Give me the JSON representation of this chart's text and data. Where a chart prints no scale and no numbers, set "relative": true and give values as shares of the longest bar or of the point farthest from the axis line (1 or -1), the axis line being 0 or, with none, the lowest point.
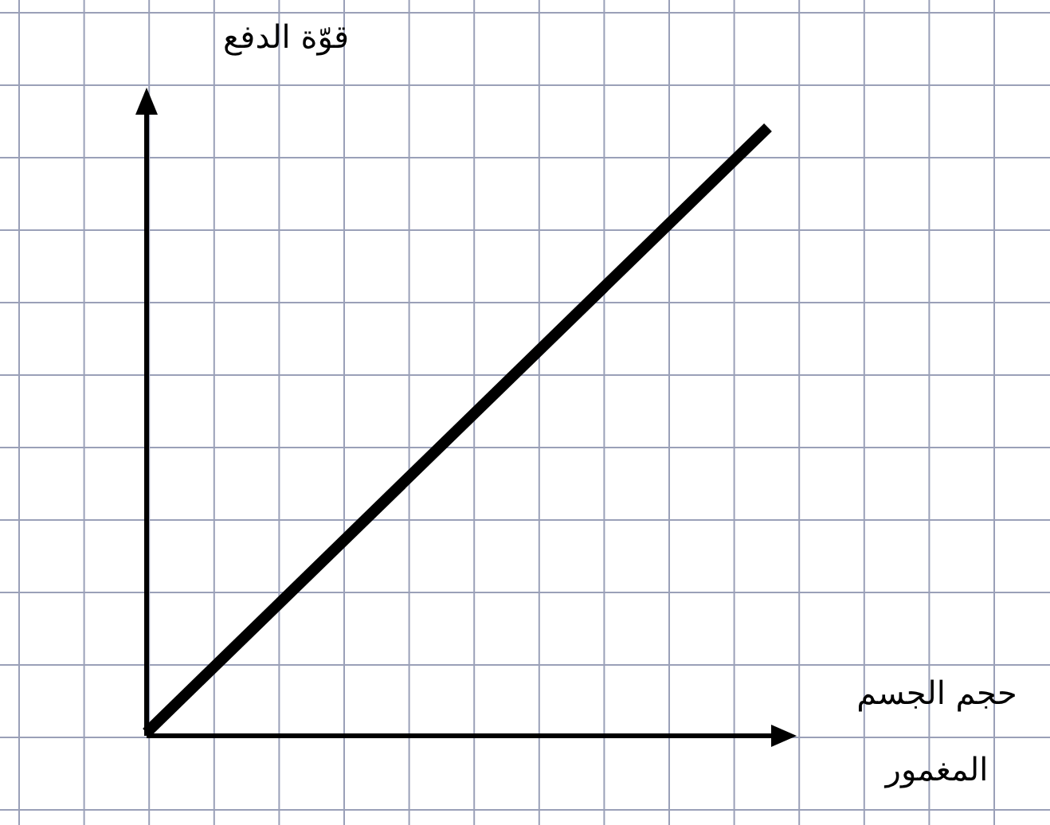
{
  "chart_data": {
    "type": "line",
    "relative": true,
    "categories": [
      null,
      null
    ],
    "xlabel": "حجم الجسم المغمور",
    "ylabel": "قوّة الدفع",
    "series": [
      {
        "color": "#000000",
        "values": [
          0,
          1
        ]
      }
    ],
    "grid": true,
    "marker": "none",
    "line_style": "solid"
  }
}
